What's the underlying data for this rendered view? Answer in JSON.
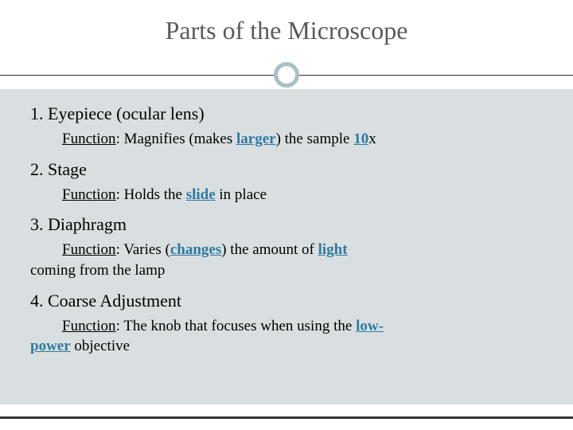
{
  "title": "Parts of the Microscope",
  "colors": {
    "accent_circle": "#a8bfc6",
    "body_bg": "#d9dfe0",
    "keyword": "#2f7aa1",
    "title_text": "#5a5a5a",
    "text": "#000000",
    "rule": "#333333"
  },
  "typography": {
    "title_fontsize": 32,
    "heading_fontsize": 22,
    "body_fontsize": 19,
    "font_family": "Georgia, serif"
  },
  "items": [
    {
      "num": "1.",
      "name": "Eyepiece (ocular lens)",
      "fn_label": "Function",
      "fn_before": ": Magnifies (makes ",
      "fn_kw1": "larger",
      "fn_mid": ") the sample ",
      "fn_kw2": "10",
      "fn_after": "x"
    },
    {
      "num": "2.",
      "name": "Stage",
      "fn_label": "Function",
      "fn_before": ":  Holds the ",
      "fn_kw1": "slide",
      "fn_mid": " in place",
      "fn_kw2": "",
      "fn_after": ""
    },
    {
      "num": "3.",
      "name": "Diaphragm",
      "fn_label": "Function",
      "fn_before": ": Varies (",
      "fn_kw1": "changes",
      "fn_mid": ") the amount of ",
      "fn_kw2": "light",
      "fn_after": "",
      "cont": "coming from the lamp"
    },
    {
      "num": "4.",
      "name": "Coarse Adjustment",
      "fn_label": "Function",
      "fn_before": ": The knob that focuses when using the ",
      "fn_kw1": "low-",
      "fn_mid": "",
      "fn_kw2": "",
      "fn_after": "",
      "cont_kw": "power",
      "cont_after": " objective"
    }
  ]
}
